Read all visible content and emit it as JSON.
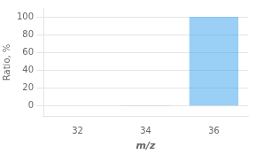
{
  "chart_data": {
    "type": "bar",
    "categories": [
      "32",
      "34",
      "36"
    ],
    "values": [
      0.5,
      0.8,
      100.0
    ],
    "xlabel": "m/z",
    "ylabel": "Ratio, %",
    "ylim": [
      -12,
      110
    ],
    "yticks": [
      0,
      20,
      40,
      60,
      80,
      100
    ],
    "grid": true
  }
}
